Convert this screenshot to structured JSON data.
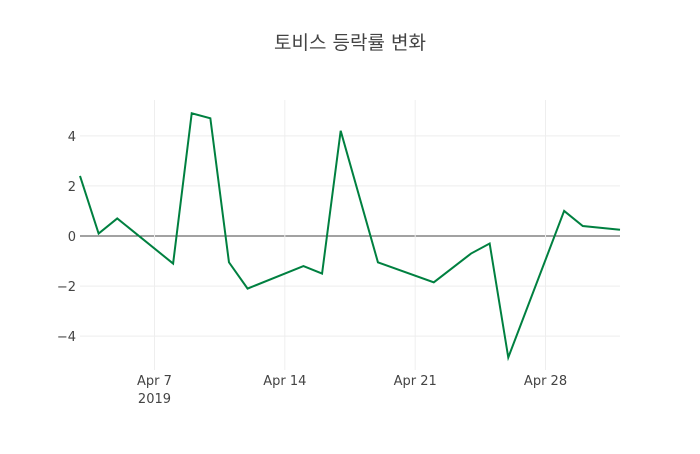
{
  "chart_data": {
    "type": "line",
    "title": "토비스 등락률 변화",
    "xlabel": "",
    "ylabel": "",
    "x": [
      "2019-04-03",
      "2019-04-04",
      "2019-04-05",
      "2019-04-08",
      "2019-04-09",
      "2019-04-10",
      "2019-04-11",
      "2019-04-12",
      "2019-04-15",
      "2019-04-16",
      "2019-04-17",
      "2019-04-19",
      "2019-04-22",
      "2019-04-24",
      "2019-04-25",
      "2019-04-26",
      "2019-04-29",
      "2019-04-30",
      "2019-05-02"
    ],
    "series": [
      {
        "name": "등락률",
        "color": "#008040",
        "values": [
          2.4,
          0.1,
          0.7,
          -1.1,
          4.9,
          4.7,
          -1.05,
          -2.1,
          -1.2,
          -1.5,
          4.2,
          -1.05,
          -1.85,
          -0.7,
          -0.3,
          -4.85,
          1.0,
          0.4,
          0.25
        ]
      }
    ],
    "xlim": [
      "2019-04-03",
      "2019-05-02"
    ],
    "ylim": [
      -5.35,
      5.43
    ],
    "xticks": [
      {
        "date": "2019-04-07",
        "label": "Apr 7",
        "sub": "2019"
      },
      {
        "date": "2019-04-14",
        "label": "Apr 14"
      },
      {
        "date": "2019-04-21",
        "label": "Apr 21"
      },
      {
        "date": "2019-04-28",
        "label": "Apr 28"
      }
    ],
    "yticks": [
      {
        "v": 4,
        "label": "4"
      },
      {
        "v": 2,
        "label": "2"
      },
      {
        "v": 0,
        "label": "0"
      },
      {
        "v": -2,
        "label": "−2"
      },
      {
        "v": -4,
        "label": "−4"
      }
    ],
    "grid": true,
    "legend": "none"
  }
}
